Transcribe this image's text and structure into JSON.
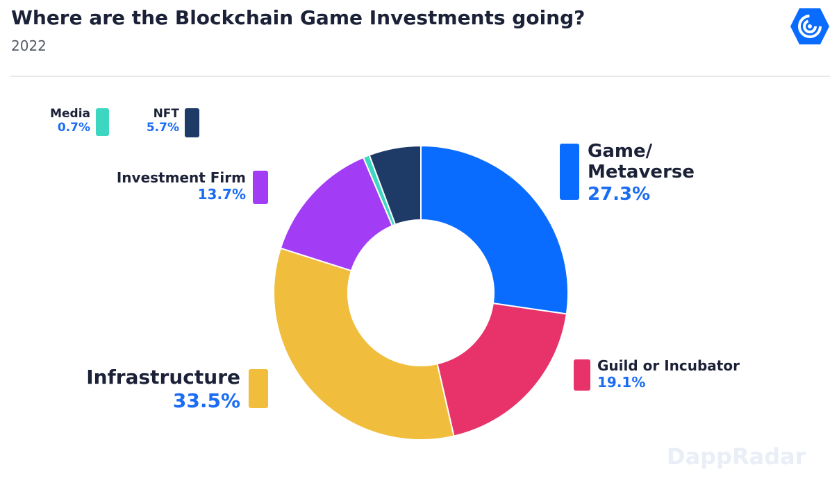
{
  "chart_data": {
    "type": "donut",
    "title": "Where are the Blockchain Game Investments going?",
    "subtitle": "2022",
    "watermark": "DappRadar",
    "categories": [
      "Game/ Metaverse",
      "Guild or Incubator",
      "Infrastructure",
      "Investment Firm",
      "Media",
      "NFT"
    ],
    "values": [
      27.3,
      19.1,
      33.5,
      13.7,
      0.7,
      5.7
    ],
    "value_labels": [
      "27.3%",
      "19.1%",
      "33.5%",
      "13.7%",
      "0.7%",
      "5.7%"
    ],
    "colors": [
      "#0a6cff",
      "#e8336a",
      "#f0be3c",
      "#a23cf5",
      "#3dd6c0",
      "#1e3a66"
    ]
  }
}
